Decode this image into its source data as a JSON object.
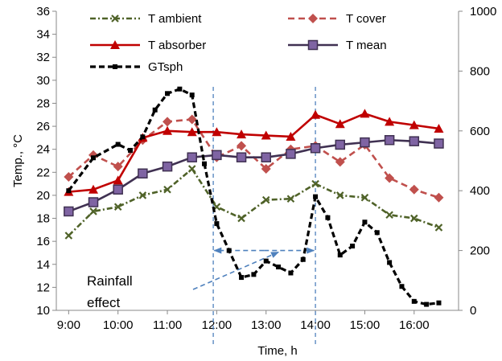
{
  "chart_data": {
    "type": "line",
    "xlabel": "Time, h",
    "ylabel": "Temp., °C",
    "ylim": [
      10,
      36
    ],
    "y_ticks": [
      "10",
      "12",
      "14",
      "16",
      "18",
      "20",
      "22",
      "24",
      "26",
      "28",
      "30",
      "32",
      "34",
      "36"
    ],
    "y2lim": [
      0,
      1000
    ],
    "y2_ticks": [
      "0",
      "200",
      "400",
      "600",
      "800",
      "1000"
    ],
    "x_ticks": [
      {
        "t": 9.0,
        "label": "9:00"
      },
      {
        "t": 10.0,
        "label": "10:00"
      },
      {
        "t": 11.0,
        "label": "11:00"
      },
      {
        "t": 12.0,
        "label": "12:00"
      },
      {
        "t": 13.0,
        "label": "13:00"
      },
      {
        "t": 14.0,
        "label": "14:00"
      },
      {
        "t": 15.0,
        "label": "15:00"
      },
      {
        "t": 16.0,
        "label": "16:00"
      }
    ],
    "xlim": [
      8.75,
      16.9
    ],
    "grid": false,
    "legend": [
      "T ambient",
      "T cover",
      "T absorber",
      "T mean",
      "GTsph"
    ],
    "series": [
      {
        "name": "T ambient",
        "axis": "left",
        "color": "#4f6228",
        "style": "dashdot",
        "marker": "x",
        "points": [
          [
            9.0,
            16.5
          ],
          [
            9.5,
            18.6
          ],
          [
            10.0,
            19.0
          ],
          [
            10.5,
            20.0
          ],
          [
            11.0,
            20.5
          ],
          [
            11.5,
            22.3
          ],
          [
            12.0,
            19.0
          ],
          [
            12.5,
            18.0
          ],
          [
            13.0,
            19.6
          ],
          [
            13.5,
            19.7
          ],
          [
            14.0,
            21.0
          ],
          [
            14.5,
            20.0
          ],
          [
            15.0,
            19.8
          ],
          [
            15.5,
            18.3
          ],
          [
            16.0,
            18.0
          ],
          [
            16.5,
            17.2
          ]
        ]
      },
      {
        "name": "T cover",
        "axis": "left",
        "color": "#c0504d",
        "style": "dashed",
        "marker": "diamond",
        "points": [
          [
            9.0,
            21.6
          ],
          [
            9.5,
            23.5
          ],
          [
            10.0,
            22.5
          ],
          [
            10.5,
            24.8
          ],
          [
            11.0,
            26.4
          ],
          [
            11.5,
            26.6
          ],
          [
            12.0,
            23.3
          ],
          [
            12.5,
            24.3
          ],
          [
            13.0,
            22.3
          ],
          [
            13.5,
            24.0
          ],
          [
            14.0,
            24.3
          ],
          [
            14.5,
            22.9
          ],
          [
            15.0,
            24.4
          ],
          [
            15.5,
            21.5
          ],
          [
            16.0,
            20.5
          ],
          [
            16.5,
            19.8
          ]
        ]
      },
      {
        "name": "T absorber",
        "axis": "left",
        "color": "#c00000",
        "style": "solid",
        "marker": "triangle",
        "points": [
          [
            9.0,
            20.3
          ],
          [
            9.5,
            20.5
          ],
          [
            10.0,
            21.3
          ],
          [
            10.5,
            25.0
          ],
          [
            11.0,
            25.6
          ],
          [
            11.5,
            25.5
          ],
          [
            12.0,
            25.5
          ],
          [
            12.5,
            25.3
          ],
          [
            13.0,
            25.2
          ],
          [
            13.5,
            25.1
          ],
          [
            14.0,
            27.0
          ],
          [
            14.5,
            26.2
          ],
          [
            15.0,
            27.1
          ],
          [
            15.5,
            26.4
          ],
          [
            16.0,
            26.1
          ],
          [
            16.5,
            25.8
          ]
        ]
      },
      {
        "name": "T mean",
        "axis": "left",
        "color": "#403152",
        "style": "solid",
        "marker": "square",
        "points": [
          [
            9.0,
            18.6
          ],
          [
            9.5,
            19.4
          ],
          [
            10.0,
            20.5
          ],
          [
            10.5,
            21.9
          ],
          [
            11.0,
            22.5
          ],
          [
            11.5,
            23.3
          ],
          [
            12.0,
            23.5
          ],
          [
            12.5,
            23.3
          ],
          [
            13.0,
            23.3
          ],
          [
            13.5,
            23.6
          ],
          [
            14.0,
            24.1
          ],
          [
            14.5,
            24.4
          ],
          [
            15.0,
            24.6
          ],
          [
            15.5,
            24.8
          ],
          [
            16.0,
            24.7
          ],
          [
            16.5,
            24.5
          ]
        ]
      },
      {
        "name": "GTsph",
        "axis": "right",
        "color": "#000000",
        "style": "dashed-bold",
        "marker": "dot",
        "points": [
          [
            9.0,
            400
          ],
          [
            9.5,
            510
          ],
          [
            10.0,
            555
          ],
          [
            10.25,
            535
          ],
          [
            10.5,
            580
          ],
          [
            10.75,
            670
          ],
          [
            11.0,
            725
          ],
          [
            11.25,
            740
          ],
          [
            11.5,
            720
          ],
          [
            11.75,
            490
          ],
          [
            12.0,
            290
          ],
          [
            12.25,
            200
          ],
          [
            12.5,
            110
          ],
          [
            12.75,
            120
          ],
          [
            13.0,
            165
          ],
          [
            13.25,
            145
          ],
          [
            13.5,
            125
          ],
          [
            13.75,
            170
          ],
          [
            14.0,
            380
          ],
          [
            14.25,
            310
          ],
          [
            14.5,
            185
          ],
          [
            14.75,
            215
          ],
          [
            15.0,
            295
          ],
          [
            15.25,
            260
          ],
          [
            15.5,
            160
          ],
          [
            15.75,
            80
          ],
          [
            16.0,
            30
          ],
          [
            16.25,
            20
          ],
          [
            16.5,
            25
          ]
        ]
      }
    ],
    "annotations": {
      "note_line1": "Rainfall",
      "note_line2": "effect",
      "vlines": [
        11.93,
        14.0
      ],
      "range_arrow": [
        11.95,
        13.97
      ],
      "range_arrow_y": 15.2
    }
  }
}
